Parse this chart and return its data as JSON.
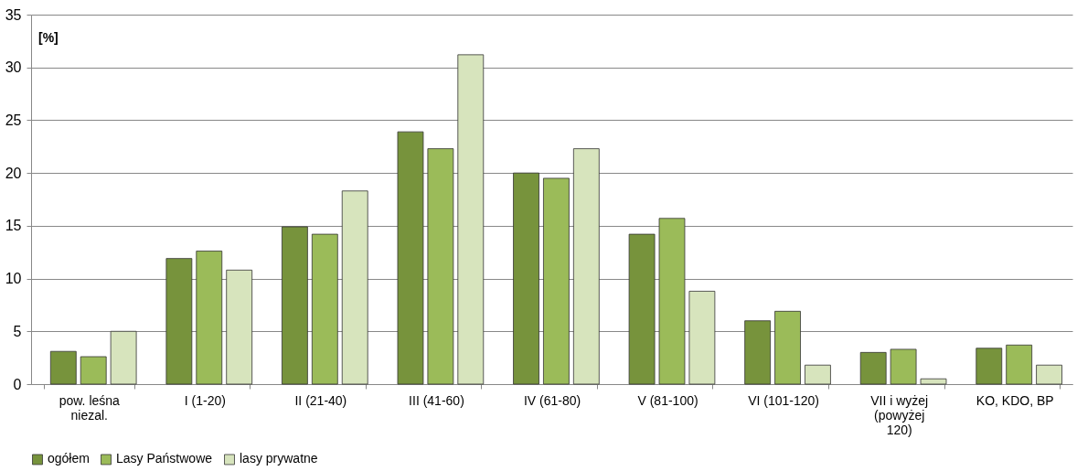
{
  "chart_data": {
    "type": "bar",
    "ylabel": "[%]",
    "categories": [
      "pow. leśna niezal.",
      "I (1-20)",
      "II (21-40)",
      "III (41-60)",
      "IV (61-80)",
      "V (81-100)",
      "VI (101-120)",
      "VII i wyżej (powyżej 120)",
      "KO, KDO, BP"
    ],
    "series": [
      {
        "name": "ogółem",
        "color": "#77933c",
        "values": [
          3.1,
          11.9,
          14.9,
          23.9,
          20.0,
          14.2,
          6.0,
          3.0,
          3.4
        ]
      },
      {
        "name": "Lasy Państwowe",
        "color": "#9bbb59",
        "values": [
          2.6,
          12.6,
          14.2,
          22.3,
          19.5,
          15.7,
          6.9,
          3.3,
          3.7
        ]
      },
      {
        "name": "lasy prywatne",
        "color": "#d7e4bd",
        "values": [
          5.0,
          10.8,
          18.3,
          31.2,
          22.3,
          8.8,
          1.8,
          0.5,
          1.8
        ]
      }
    ],
    "ylim": [
      0,
      35
    ],
    "yticks": [
      0,
      5,
      10,
      15,
      20,
      25,
      30,
      35
    ],
    "grid": "y",
    "legend": "bottom"
  }
}
